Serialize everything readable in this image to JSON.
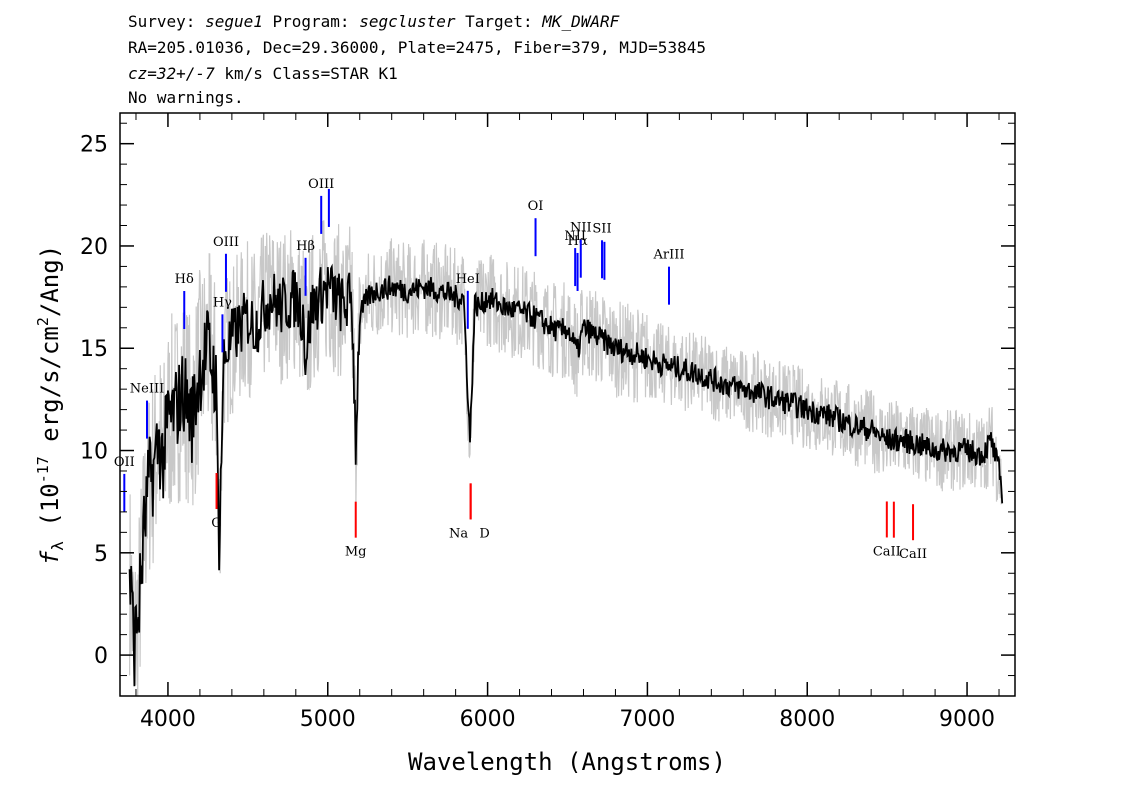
{
  "header": {
    "line1": {
      "survey_label": "Survey: ",
      "survey": "segue1",
      "program_label": " Program: ",
      "program": "segcluster",
      "target_label": " Target: ",
      "target": "MK_DWARF"
    },
    "line2": "RA=205.01036, Dec=29.36000, Plate=2475, Fiber=379, MJD=53845",
    "line3": {
      "cz": "cz=32+/-7",
      "rest": " km/s Class=STAR K1"
    },
    "line4": "No warnings."
  },
  "chart_data": {
    "type": "line",
    "xlabel": "Wavelength (Angstroms)",
    "ylabel": "f_λ (10^-17 erg/s/cm^2/Ang)",
    "xlim": [
      3700,
      9300
    ],
    "ylim": [
      -2,
      26.5
    ],
    "x_ticks": [
      4000,
      5000,
      6000,
      7000,
      8000,
      9000
    ],
    "y_ticks": [
      0,
      5,
      10,
      15,
      20,
      25
    ],
    "grid": false,
    "colors": {
      "spectrum": "#000000",
      "noise": "#c8c8c8",
      "emission": "#0000ff",
      "absorption": "#ff0000"
    },
    "series": [
      {
        "role": "spectrum",
        "x": [
          3760,
          3790,
          3820,
          3850,
          3880,
          3910,
          3940,
          3970,
          4000,
          4050,
          4100,
          4150,
          4200,
          4250,
          4300,
          4320,
          4350,
          4400,
          4450,
          4500,
          4550,
          4600,
          4650,
          4700,
          4750,
          4800,
          4850,
          4860,
          4900,
          4950,
          5000,
          5050,
          5100,
          5150,
          5175,
          5200,
          5250,
          5300,
          5400,
          5500,
          5600,
          5700,
          5800,
          5850,
          5890,
          5920,
          5950,
          6000,
          6100,
          6200,
          6300,
          6400,
          6450,
          6500,
          6550,
          6563,
          6600,
          6700,
          6800,
          6900,
          7000,
          7100,
          7200,
          7300,
          7400,
          7500,
          7600,
          7700,
          7800,
          7900,
          8000,
          8100,
          8200,
          8300,
          8400,
          8500,
          8600,
          8700,
          8800,
          8900,
          9000,
          9100,
          9150,
          9200,
          9220
        ],
        "y": [
          4.0,
          0.5,
          2.5,
          6.0,
          8.5,
          9.0,
          10.5,
          9.5,
          11.5,
          12.0,
          13.0,
          11.5,
          14.0,
          15.0,
          13.5,
          5.5,
          14.5,
          15.5,
          16.0,
          16.5,
          16.0,
          17.0,
          17.5,
          17.0,
          17.2,
          17.5,
          16.5,
          14.5,
          17.0,
          17.5,
          18.0,
          17.5,
          17.0,
          17.5,
          10.5,
          16.5,
          17.5,
          17.8,
          18.0,
          17.8,
          18.0,
          17.8,
          17.5,
          17.5,
          10.5,
          17.2,
          17.0,
          17.5,
          17.0,
          16.8,
          16.5,
          16.0,
          15.8,
          16.0,
          15.0,
          14.8,
          16.0,
          15.5,
          15.0,
          14.8,
          14.5,
          14.2,
          14.0,
          13.8,
          13.5,
          13.2,
          13.0,
          12.8,
          12.5,
          12.3,
          12.0,
          11.8,
          11.5,
          11.2,
          11.0,
          10.5,
          10.5,
          10.3,
          10.0,
          10.0,
          10.0,
          9.8,
          10.5,
          9.0,
          8.0
        ]
      }
    ],
    "lines": [
      {
        "label": "OII",
        "x": 3727,
        "type": "emission"
      },
      {
        "label": "NeIII",
        "x": 3869,
        "type": "emission"
      },
      {
        "label": "Hδ",
        "x": 4102,
        "type": "emission"
      },
      {
        "label": "Hγ",
        "x": 4341,
        "type": "emission"
      },
      {
        "label": "OIII",
        "x": 4363,
        "type": "emission"
      },
      {
        "label": "Hβ",
        "x": 4861,
        "type": "emission"
      },
      {
        "label": "OIII",
        "x": 4959,
        "type": "emission"
      },
      {
        "label": "OIII",
        "x": 5007,
        "type": "emission"
      },
      {
        "label": "HeI",
        "x": 5876,
        "type": "emission"
      },
      {
        "label": "OI",
        "x": 6300,
        "type": "emission"
      },
      {
        "label": "NII",
        "x": 6548,
        "type": "emission"
      },
      {
        "label": "Hα",
        "x": 6563,
        "type": "emission"
      },
      {
        "label": "NII",
        "x": 6583,
        "type": "emission"
      },
      {
        "label": "SII",
        "x": 6716,
        "type": "emission"
      },
      {
        "label": "SII",
        "x": 6731,
        "type": "emission"
      },
      {
        "label": "ArIII",
        "x": 7135,
        "type": "emission"
      },
      {
        "label": "G",
        "x": 4304,
        "type": "absorption"
      },
      {
        "label": "Mg",
        "x": 5175,
        "type": "absorption"
      },
      {
        "label": "Na",
        "x": 5894,
        "type": "absorption"
      },
      {
        "label": "D",
        "x": 5894,
        "type": "absorption"
      },
      {
        "label": "CaII",
        "x": 8498,
        "type": "absorption"
      },
      {
        "label": "CaII",
        "x": 8542,
        "type": "absorption"
      },
      {
        "label": "CaII",
        "x": 8662,
        "type": "absorption"
      }
    ]
  }
}
